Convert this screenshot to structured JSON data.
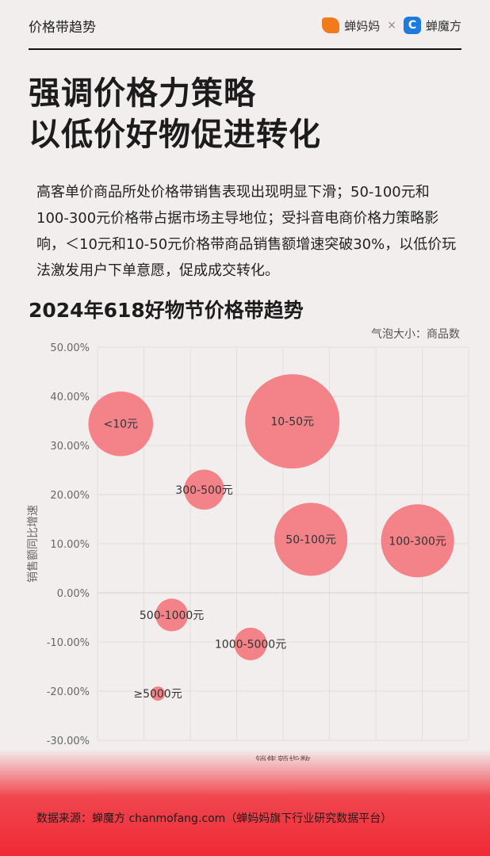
{
  "header": {
    "section": "价格带趋势",
    "brand1": "蝉妈妈",
    "times": "×",
    "brand2": "蝉魔方",
    "brand2_icon": "C"
  },
  "headline": [
    "强调价格力策略",
    "以低价好物促进转化"
  ],
  "intro": "高客单价商品所处价格带销售表现出现明显下滑；50-100元和100-300元价格带占据市场主导地位；受抖音电商价格力策略影响，＜10元和10-50元价格带商品销售额增速突破30%，以低价玩法激发用户下单意愿，促成成交转化。",
  "chart_data": {
    "type": "scatter",
    "subtype": "bubble",
    "title": "2024年618好物节价格带趋势",
    "size_legend": "气泡大小：商品数",
    "xlabel": "销售额指数",
    "ylabel": "销售额同比增速",
    "xlim": [
      0,
      8
    ],
    "ylim": [
      -30,
      50
    ],
    "yticks": [
      "50.00%",
      "40.00%",
      "30.00%",
      "20.00%",
      "10.00%",
      "0.00%",
      "-10.00%",
      "-20.00%",
      "-30.00%"
    ],
    "ytick_values": [
      50,
      40,
      30,
      20,
      10,
      0,
      -10,
      -20,
      -30
    ],
    "grid": true,
    "color": "#f37a80",
    "points": [
      {
        "label": "<10元",
        "x": 0.5,
        "y": 34.4,
        "size": 47
      },
      {
        "label": "10-50元",
        "x": 4.2,
        "y": 34.9,
        "size": 100
      },
      {
        "label": "300-500元",
        "x": 2.3,
        "y": 21.0,
        "size": 18
      },
      {
        "label": "50-100元",
        "x": 4.6,
        "y": 10.9,
        "size": 60
      },
      {
        "label": "100-300元",
        "x": 6.9,
        "y": 10.6,
        "size": 60
      },
      {
        "label": "500-1000元",
        "x": 1.6,
        "y": -4.5,
        "size": 12
      },
      {
        "label": "1000-5000元",
        "x": 3.3,
        "y": -10.4,
        "size": 12
      },
      {
        "label": "≥5000元",
        "x": 1.3,
        "y": -20.5,
        "size": 2.3
      }
    ]
  },
  "footer": {
    "source": "数据来源：蝉魔方 chanmofang.com（蝉妈妈旗下行业研究数据平台）"
  }
}
